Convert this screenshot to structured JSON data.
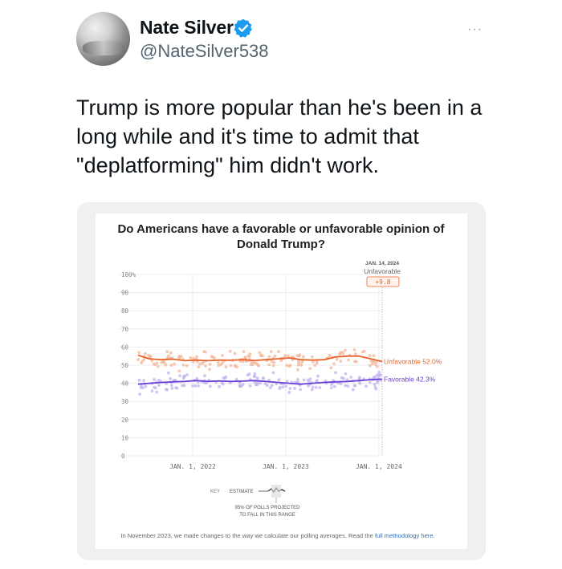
{
  "author": {
    "name": "Nate Silver",
    "handle": "@NateSilver538",
    "verified_icon": "verified-badge-icon",
    "more_label": "···"
  },
  "tweet": {
    "text": "Trump is more popular than he's been in a long while and it's time to admit that \"deplatforming\" him didn't work."
  },
  "colors": {
    "unfavorable": "#e8632b",
    "favorable": "#6a3fd6",
    "unfavorable_dots": "#f3b79b",
    "favorable_dots": "#c3b1ef",
    "verified": "#1d9bf0"
  },
  "chart_data": {
    "type": "line",
    "title": "Do Americans have a favorable or unfavorable opinion of Donald Trump?",
    "y_ticks": [
      "100%",
      "90",
      "80",
      "70",
      "60",
      "50",
      "40",
      "30",
      "20",
      "10",
      "0"
    ],
    "x_ticks": [
      "JAN. 1, 2022",
      "JAN. 1, 2023",
      "JAN. 1, 2024"
    ],
    "ylim": [
      0,
      100
    ],
    "x_range": [
      "2021-06-01",
      "2024-01-14"
    ],
    "series": [
      {
        "name": "Unfavorable",
        "end_label": "Unfavorable 52.0%",
        "x": [
          "2021-06-01",
          "2021-07-15",
          "2021-09-01",
          "2021-10-15",
          "2021-12-01",
          "2022-01-15",
          "2022-03-01",
          "2022-04-15",
          "2022-06-01",
          "2022-07-15",
          "2022-09-01",
          "2022-10-15",
          "2022-12-01",
          "2023-01-15",
          "2023-03-01",
          "2023-04-15",
          "2023-06-01",
          "2023-07-15",
          "2023-09-01",
          "2023-10-15",
          "2023-12-01",
          "2024-01-14"
        ],
        "values": [
          55.5,
          53.5,
          53.0,
          53.3,
          52.5,
          52.8,
          52.5,
          52.8,
          52.7,
          53.0,
          52.6,
          53.0,
          53.5,
          54.0,
          53.0,
          52.8,
          53.0,
          54.5,
          55.0,
          55.0,
          53.5,
          52.0
        ]
      },
      {
        "name": "Favorable",
        "end_label": "Favorable 42.3%",
        "x": [
          "2021-06-01",
          "2021-07-15",
          "2021-09-01",
          "2021-10-15",
          "2021-12-01",
          "2022-01-15",
          "2022-03-01",
          "2022-04-15",
          "2022-06-01",
          "2022-07-15",
          "2022-09-01",
          "2022-10-15",
          "2022-12-01",
          "2023-01-15",
          "2023-03-01",
          "2023-04-15",
          "2023-06-01",
          "2023-07-15",
          "2023-09-01",
          "2023-10-15",
          "2023-12-01",
          "2024-01-14"
        ],
        "values": [
          39.5,
          40.0,
          40.5,
          40.8,
          41.0,
          41.5,
          41.0,
          41.3,
          41.0,
          41.2,
          41.5,
          41.0,
          40.5,
          40.0,
          39.5,
          40.0,
          40.5,
          40.8,
          41.0,
          41.5,
          42.0,
          42.3
        ]
      }
    ],
    "annotation": {
      "date": "JAN. 14, 2024",
      "label": "Unfavorable",
      "value": "+9.8"
    },
    "key": {
      "title": "KEY",
      "estimate": "ESTIMATE",
      "range_line1": "95% OF POLLS PROJECTED",
      "range_line2": "TO FALL IN THIS RANGE"
    },
    "footnote": {
      "text": "In November 2023, we made changes to the way we calculate our polling averages. Read the ",
      "link": "full methodology here",
      "end": "."
    }
  }
}
